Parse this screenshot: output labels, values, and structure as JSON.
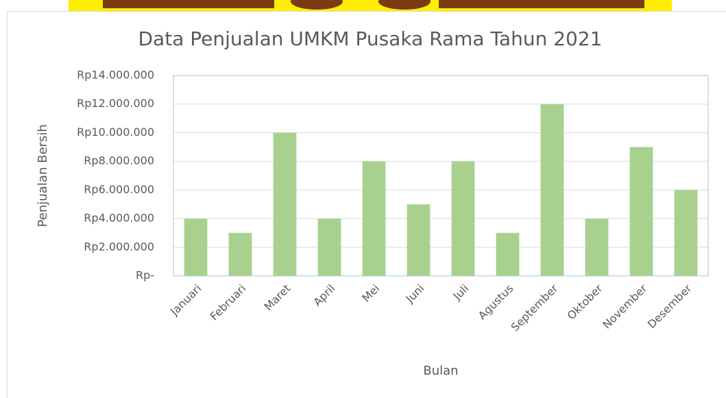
{
  "chart_data": {
    "type": "bar",
    "title": "Data Penjualan UMKM Pusaka Rama Tahun 2021",
    "x_label": "Bulan",
    "y_label": "Penjualan Bersih",
    "categories": [
      "Januari",
      "Februari",
      "Maret",
      "April",
      "Mei",
      "Juni",
      "Juli",
      "Agustus",
      "September",
      "Oktober",
      "November",
      "Desember"
    ],
    "values": [
      4000000,
      3000000,
      10000000,
      4000000,
      8000000,
      5000000,
      8000000,
      3000000,
      12000000,
      4000000,
      9000000,
      6000000
    ],
    "color": "#a9d18e",
    "ylim": [
      0,
      14000000
    ],
    "yticks": [
      {
        "value": 0,
        "label": "Rp-"
      },
      {
        "value": 2000000,
        "label": "Rp2.000.000"
      },
      {
        "value": 4000000,
        "label": "Rp4.000.000"
      },
      {
        "value": 6000000,
        "label": "Rp6.000.000"
      },
      {
        "value": 8000000,
        "label": "Rp8.000.000"
      },
      {
        "value": 10000000,
        "label": "Rp10.000.000"
      },
      {
        "value": 12000000,
        "label": "Rp12.000.000"
      },
      {
        "value": 14000000,
        "label": "Rp14.000.000"
      }
    ],
    "grid": true
  }
}
